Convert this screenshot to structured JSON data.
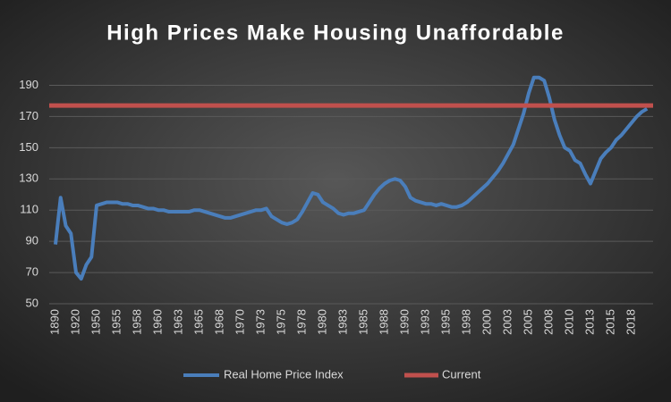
{
  "chart_data": {
    "type": "line",
    "title": "High Prices Make Housing Unaffordable",
    "categories": [
      "1890",
      null,
      null,
      null,
      "1920",
      null,
      null,
      null,
      "1950",
      null,
      null,
      null,
      "1955",
      null,
      null,
      null,
      "1958",
      null,
      null,
      null,
      "1960",
      null,
      null,
      null,
      "1963",
      null,
      null,
      null,
      "1965",
      null,
      null,
      null,
      "1968",
      null,
      null,
      null,
      "1970",
      null,
      null,
      null,
      "1973",
      null,
      null,
      null,
      "1975",
      null,
      null,
      null,
      "1978",
      null,
      null,
      null,
      "1980",
      null,
      null,
      null,
      "1983",
      null,
      null,
      null,
      "1985",
      null,
      null,
      null,
      "1988",
      null,
      null,
      null,
      "1990",
      null,
      null,
      null,
      "1993",
      null,
      null,
      null,
      "1995",
      null,
      null,
      null,
      "1998",
      null,
      null,
      null,
      "2000",
      null,
      null,
      null,
      "2003",
      null,
      null,
      null,
      "2005",
      null,
      null,
      null,
      "2008",
      null,
      null,
      null,
      "2010",
      null,
      null,
      null,
      "2013",
      null,
      null,
      null,
      "2015",
      null,
      null,
      null,
      "2018",
      null,
      null,
      null
    ],
    "series": [
      {
        "name": "Real Home Price Index",
        "color": "#4a7ebb",
        "values": [
          88,
          118,
          100,
          95,
          70,
          66,
          75,
          80,
          113,
          114,
          115,
          115,
          115,
          114,
          114,
          113,
          113,
          112,
          111,
          111,
          110,
          110,
          109,
          109,
          109,
          109,
          109,
          110,
          110,
          109,
          108,
          107,
          106,
          105,
          105,
          106,
          107,
          108,
          109,
          110,
          110,
          111,
          106,
          104,
          102,
          101,
          102,
          104,
          109,
          115,
          121,
          120,
          115,
          113,
          111,
          108,
          107,
          108,
          108,
          109,
          110,
          115,
          120,
          124,
          127,
          129,
          130,
          129,
          125,
          118,
          116,
          115,
          114,
          114,
          113,
          114,
          113,
          112,
          112,
          113,
          115,
          118,
          121,
          124,
          127,
          131,
          135,
          140,
          146,
          152,
          162,
          172,
          185,
          195,
          195,
          193,
          182,
          168,
          158,
          150,
          148,
          142,
          140,
          133,
          127,
          135,
          143,
          147,
          150,
          155,
          158,
          162,
          166,
          170,
          173,
          175
        ]
      }
    ],
    "reference_line": {
      "name": "Current",
      "color": "#c0504d",
      "value": 177
    },
    "ylim": [
      50,
      200
    ],
    "yticks": [
      50,
      70,
      90,
      110,
      130,
      150,
      170,
      190
    ],
    "grid": true
  }
}
